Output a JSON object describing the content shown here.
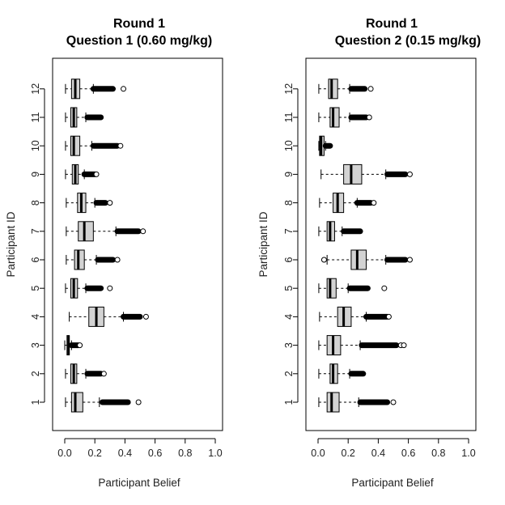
{
  "chart_data": [
    {
      "type": "boxplot",
      "orientation": "horizontal",
      "title": [
        "Round 1",
        "Question 1 (0.60 mg/kg)"
      ],
      "xlabel": "Participant Belief",
      "ylabel": "Participant ID",
      "xlim": [
        0,
        1
      ],
      "xticks": [
        "0.0",
        "0.2",
        "0.4",
        "0.6",
        "0.8",
        "1.0"
      ],
      "categories": [
        "1",
        "2",
        "3",
        "4",
        "5",
        "6",
        "7",
        "8",
        "9",
        "10",
        "11",
        "12"
      ],
      "boxes": [
        {
          "id": "1",
          "wlo": 0.005,
          "q1": 0.045,
          "median": 0.07,
          "q3": 0.12,
          "whi": 0.23,
          "out_lo": 0.25,
          "out_hi": 0.42,
          "outliers": [
            0.49
          ]
        },
        {
          "id": "2",
          "wlo": 0.005,
          "q1": 0.04,
          "median": 0.06,
          "q3": 0.08,
          "whi": 0.14,
          "out_lo": 0.15,
          "out_hi": 0.24,
          "outliers": [
            0.26
          ]
        },
        {
          "id": "3",
          "wlo": 0.0,
          "q1": 0.015,
          "median": 0.025,
          "q3": 0.03,
          "whi": 0.045,
          "out_lo": 0.045,
          "out_hi": 0.09,
          "outliers": [
            0.1
          ]
        },
        {
          "id": "4",
          "wlo": 0.03,
          "q1": 0.16,
          "median": 0.21,
          "q3": 0.26,
          "whi": 0.39,
          "out_lo": 0.39,
          "out_hi": 0.5,
          "outliers": [
            0.54
          ]
        },
        {
          "id": "5",
          "wlo": 0.005,
          "q1": 0.04,
          "median": 0.06,
          "q3": 0.085,
          "whi": 0.14,
          "out_lo": 0.15,
          "out_hi": 0.24,
          "outliers": [
            0.3
          ]
        },
        {
          "id": "6",
          "wlo": 0.01,
          "q1": 0.065,
          "median": 0.09,
          "q3": 0.13,
          "whi": 0.21,
          "out_lo": 0.22,
          "out_hi": 0.32,
          "outliers": [
            0.35
          ]
        },
        {
          "id": "7",
          "wlo": 0.01,
          "q1": 0.09,
          "median": 0.13,
          "q3": 0.19,
          "whi": 0.34,
          "out_lo": 0.35,
          "out_hi": 0.49,
          "outliers": [
            0.52
          ]
        },
        {
          "id": "8",
          "wlo": 0.01,
          "q1": 0.085,
          "median": 0.11,
          "q3": 0.14,
          "whi": 0.2,
          "out_lo": 0.21,
          "out_hi": 0.27,
          "outliers": [
            0.3
          ]
        },
        {
          "id": "9",
          "wlo": 0.005,
          "q1": 0.05,
          "median": 0.07,
          "q3": 0.09,
          "whi": 0.13,
          "out_lo": 0.13,
          "out_hi": 0.2,
          "outliers": [
            0.21
          ]
        },
        {
          "id": "10",
          "wlo": 0.005,
          "q1": 0.04,
          "median": 0.06,
          "q3": 0.1,
          "whi": 0.18,
          "out_lo": 0.19,
          "out_hi": 0.35,
          "outliers": [
            0.37
          ]
        },
        {
          "id": "11",
          "wlo": 0.005,
          "q1": 0.04,
          "median": 0.06,
          "q3": 0.08,
          "whi": 0.14,
          "out_lo": 0.15,
          "out_hi": 0.24,
          "outliers": []
        },
        {
          "id": "12",
          "wlo": 0.005,
          "q1": 0.045,
          "median": 0.07,
          "q3": 0.1,
          "whi": 0.19,
          "out_lo": 0.19,
          "out_hi": 0.32,
          "outliers": [
            0.39
          ]
        }
      ]
    },
    {
      "type": "boxplot",
      "orientation": "horizontal",
      "title": [
        "Round 1",
        "Question 2 (0.15 mg/kg)"
      ],
      "xlabel": "Participant Belief",
      "ylabel": "Participant ID",
      "xlim": [
        0,
        1
      ],
      "xticks": [
        "0.0",
        "0.2",
        "0.4",
        "0.6",
        "0.8",
        "1.0"
      ],
      "categories": [
        "1",
        "2",
        "3",
        "4",
        "5",
        "6",
        "7",
        "8",
        "9",
        "10",
        "11",
        "12"
      ],
      "boxes": [
        {
          "id": "1",
          "wlo": 0.005,
          "q1": 0.06,
          "median": 0.09,
          "q3": 0.14,
          "whi": 0.27,
          "out_lo": 0.28,
          "out_hi": 0.46,
          "outliers": [
            0.5
          ]
        },
        {
          "id": "2",
          "wlo": 0.005,
          "q1": 0.08,
          "median": 0.1,
          "q3": 0.13,
          "whi": 0.21,
          "out_lo": 0.22,
          "out_hi": 0.3,
          "outliers": []
        },
        {
          "id": "3",
          "wlo": 0.005,
          "q1": 0.06,
          "median": 0.1,
          "q3": 0.15,
          "whi": 0.28,
          "out_lo": 0.29,
          "out_hi": 0.52,
          "outliers": [
            0.55,
            0.57
          ]
        },
        {
          "id": "4",
          "wlo": 0.01,
          "q1": 0.13,
          "median": 0.17,
          "q3": 0.22,
          "whi": 0.32,
          "out_lo": 0.32,
          "out_hi": 0.46,
          "outliers": [
            0.47
          ]
        },
        {
          "id": "5",
          "wlo": 0.005,
          "q1": 0.06,
          "median": 0.08,
          "q3": 0.12,
          "whi": 0.2,
          "out_lo": 0.21,
          "out_hi": 0.33,
          "outliers": [
            0.44
          ]
        },
        {
          "id": "6",
          "wlo": 0.06,
          "q1": 0.22,
          "median": 0.26,
          "q3": 0.32,
          "whi": 0.45,
          "out_lo": 0.46,
          "out_hi": 0.58,
          "outliers": [
            0.04,
            0.61
          ]
        },
        {
          "id": "7",
          "wlo": 0.005,
          "q1": 0.06,
          "median": 0.08,
          "q3": 0.11,
          "whi": 0.16,
          "out_lo": 0.17,
          "out_hi": 0.28,
          "outliers": []
        },
        {
          "id": "8",
          "wlo": 0.01,
          "q1": 0.1,
          "median": 0.13,
          "q3": 0.17,
          "whi": 0.26,
          "out_lo": 0.26,
          "out_hi": 0.35,
          "outliers": [
            0.37
          ]
        },
        {
          "id": "9",
          "wlo": 0.02,
          "q1": 0.17,
          "median": 0.22,
          "q3": 0.29,
          "whi": 0.45,
          "out_lo": 0.46,
          "out_hi": 0.58,
          "outliers": [
            0.61
          ]
        },
        {
          "id": "10",
          "wlo": 0.005,
          "q1": 0.01,
          "median": 0.02,
          "q3": 0.04,
          "whi": 0.05,
          "out_lo": 0.05,
          "out_hi": 0.08,
          "outliers": []
        },
        {
          "id": "11",
          "wlo": 0.005,
          "q1": 0.08,
          "median": 0.1,
          "q3": 0.14,
          "whi": 0.21,
          "out_lo": 0.22,
          "out_hi": 0.32,
          "outliers": [
            0.34
          ]
        },
        {
          "id": "12",
          "wlo": 0.005,
          "q1": 0.07,
          "median": 0.09,
          "q3": 0.13,
          "whi": 0.21,
          "out_lo": 0.22,
          "out_hi": 0.31,
          "outliers": [
            0.35
          ]
        }
      ]
    }
  ]
}
